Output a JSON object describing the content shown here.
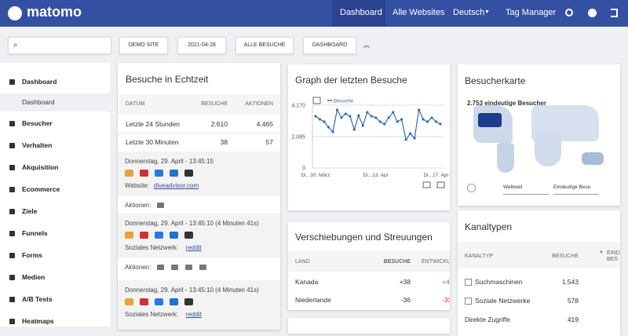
{
  "nav": {
    "logo": "matomo",
    "items": [
      "Dashboard",
      "Alle Websites",
      "Deutsch",
      "Tag Manager"
    ]
  },
  "toolbar": {
    "buttons": [
      "DEMO SITE",
      "2021-04-28",
      "ALLE BESUCHE",
      "DASHBOARD"
    ]
  },
  "sidebar": {
    "items": [
      "Dashboard",
      "Dashboard",
      "Besucher",
      "Verhalten",
      "Akquisition",
      "Ecommerce",
      "Ziele",
      "Funnels",
      "Forms",
      "Medien",
      "A/B Tests",
      "Heatmaps"
    ]
  },
  "realtime": {
    "title": "Besuche in Echtzeit",
    "columns": [
      "DATUM",
      "BESUCHE",
      "AKTIONEN"
    ],
    "rows": [
      [
        "Letzte 24 Stunden",
        "2.610",
        "4.465"
      ],
      [
        "Letzte 30 Minuten",
        "38",
        "57"
      ]
    ],
    "visits": [
      {
        "time": "Donnerstag, 29. April - 13:45:15",
        "source_label": "Website:",
        "source": "diveadvisor.com",
        "actions": "Aktionen:"
      },
      {
        "time": "Donnerstag, 29. April - 13:45:10 (4 Minuten 41s)",
        "source_label": "Soziales Netzwerk:",
        "source": "reddit",
        "actions": "Aktionen:"
      },
      {
        "time": "Donnerstag, 29. April - 13:45:10 (4 Minuten 41s)",
        "source_label": "Soziales Netzwerk:",
        "source": "reddit"
      }
    ]
  },
  "graph": {
    "title": "Graph der letzten Besuche",
    "chart_data": {
      "type": "line",
      "categories": [
        "Di., 30. März",
        null,
        null,
        null,
        null,
        null,
        null,
        null,
        null,
        null,
        null,
        null,
        null,
        null,
        "Di., 13. Apr",
        null,
        null,
        null,
        null,
        null,
        null,
        null,
        null,
        null,
        null,
        null,
        null,
        null,
        "Di., 27. Apr",
        null
      ],
      "series": [
        {
          "name": "Besuche",
          "color": "#2f6fb3",
          "values": [
            3440,
            3230,
            3075,
            2710,
            2400,
            3860,
            3340,
            3600,
            3440,
            2550,
            3490,
            2815,
            3700,
            3440,
            3340,
            3075,
            2920,
            3340,
            3700,
            3075,
            3230,
            1880,
            2290,
            1980,
            3860,
            3230,
            3075,
            3340,
            3075,
            2920
          ]
        }
      ],
      "ylim": [
        0,
        4170
      ],
      "yticks": [
        0,
        {
          "value": 2085,
          "label": "2.085"
        },
        {
          "value": 4170,
          "label": "4.170"
        }
      ],
      "grid": true
    }
  },
  "map": {
    "title": "Besucherkarte",
    "summary": "2.753 eindeutige Besucher",
    "region": "Weltweit",
    "metric": "Eindeutige Besu"
  },
  "movers": {
    "title": "Verschiebungen und Streuungen",
    "columns": [
      "LAND",
      "BESUCHE",
      "ENTWICKL"
    ],
    "rows": [
      [
        "Kanada",
        "+38",
        "+4"
      ],
      [
        "Niederlande",
        "-36",
        "-33"
      ]
    ]
  },
  "channels": {
    "title": "Kanaltypen",
    "columns": [
      "KANALTYP",
      "BESUCHE",
      "EIND BES"
    ],
    "rows": [
      [
        "Suchmaschinen",
        "1.543"
      ],
      [
        "Soziale Netzwerke",
        "578"
      ],
      [
        "Direkte Zugriffe",
        "419"
      ]
    ]
  }
}
